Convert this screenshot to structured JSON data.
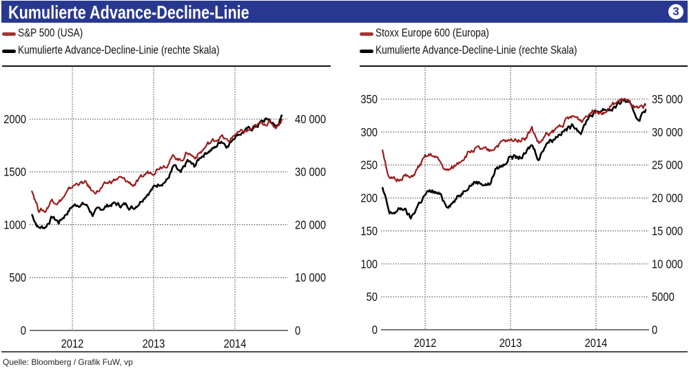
{
  "header": {
    "title": "Kumulierte Advance-Decline-Linie",
    "number": "3",
    "color": "#283891"
  },
  "source": "Quelle: Bloomberg / Grafik FuW, vp",
  "chart_data": [
    {
      "type": "line",
      "legend": [
        "S&P 500 (USA)",
        "Kumulierte Advance-Decline-Linie (rechte Skala)"
      ],
      "x_ticks": [
        "2012",
        "2013",
        "2014"
      ],
      "x_range": [
        2011.5,
        2014.67
      ],
      "y_left": {
        "ticks": [
          "0",
          "500",
          "1000",
          "1500",
          "2000"
        ],
        "tick_values": [
          0,
          500,
          1000,
          1500,
          2000
        ],
        "range": [
          0,
          2500
        ]
      },
      "y_right": {
        "ticks": [
          "0",
          "10 000",
          "20 000",
          "30 000",
          "40 000"
        ],
        "tick_values": [
          0,
          10000,
          20000,
          30000,
          40000
        ],
        "range": [
          0,
          50000
        ]
      },
      "grid": true,
      "series": [
        {
          "name": "S&P 500 (USA)",
          "axis": "left",
          "color": "#9b1b1b",
          "x_start": 2011.5,
          "step_months": 1,
          "values": [
            1340,
            1150,
            1130,
            1240,
            1220,
            1280,
            1360,
            1400,
            1390,
            1310,
            1330,
            1380,
            1420,
            1440,
            1410,
            1380,
            1420,
            1490,
            1510,
            1560,
            1580,
            1650,
            1610,
            1690,
            1640,
            1690,
            1760,
            1800,
            1840,
            1780,
            1860,
            1870,
            1890,
            1920,
            1960,
            1970,
            1930,
            2000
          ]
        },
        {
          "name": "Kumulierte Advance-Decline-Linie",
          "axis": "right",
          "color": "#000000",
          "x_start": 2011.5,
          "step_months": 1,
          "values": [
            22000,
            19500,
            19600,
            21500,
            20500,
            22000,
            23500,
            24000,
            23800,
            22000,
            22800,
            23500,
            24000,
            23700,
            23800,
            23200,
            24500,
            26000,
            27000,
            28000,
            28500,
            31000,
            29500,
            32000,
            31000,
            33000,
            34000,
            34500,
            36000,
            35000,
            37000,
            37500,
            38000,
            38500,
            39500,
            40000,
            38500,
            40500
          ]
        }
      ]
    },
    {
      "type": "line",
      "legend": [
        "Stoxx Europe 600 (Europa)",
        "Kumulierte Advance-Decline-Linie (rechte Skala)"
      ],
      "x_ticks": [
        "2012",
        "2013",
        "2014"
      ],
      "x_range": [
        2011.5,
        2014.65
      ],
      "y_left": {
        "ticks": [
          "0",
          "50",
          "100",
          "150",
          "200",
          "250",
          "300",
          "350"
        ],
        "tick_values": [
          0,
          50,
          100,
          150,
          200,
          250,
          300,
          350
        ],
        "range": [
          0,
          350
        ]
      },
      "y_right": {
        "ticks": [
          "0",
          "5000",
          "10 000",
          "15 000",
          "20 000",
          "25 000",
          "30 000",
          "35 000"
        ],
        "tick_values": [
          0,
          5000,
          10000,
          15000,
          20000,
          25000,
          30000,
          35000
        ],
        "range": [
          0,
          35000
        ]
      },
      "grid": true,
      "series": [
        {
          "name": "Stoxx Europe 600 (Europa)",
          "axis": "left",
          "color": "#9b1b1b",
          "x_start": 2011.5,
          "step_months": 1,
          "values": [
            275,
            228,
            225,
            235,
            228,
            245,
            260,
            265,
            255,
            240,
            245,
            258,
            268,
            275,
            272,
            270,
            280,
            285,
            285,
            290,
            292,
            305,
            282,
            295,
            300,
            310,
            320,
            322,
            318,
            330,
            335,
            332,
            338,
            345,
            350,
            340,
            332,
            340
          ]
        },
        {
          "name": "Kumulierte Advance-Decline-Linie",
          "axis": "right",
          "color": "#000000",
          "x_start": 2011.5,
          "step_months": 1,
          "values": [
            21500,
            17500,
            18000,
            18500,
            16800,
            19000,
            20500,
            21000,
            20500,
            19000,
            19500,
            20500,
            22000,
            22500,
            22300,
            22000,
            24500,
            25000,
            26500,
            26000,
            26500,
            28000,
            26000,
            28500,
            29000,
            30000,
            30500,
            31000,
            30000,
            32500,
            33000,
            33500,
            33500,
            34000,
            35000,
            33500,
            32000,
            33500
          ]
        }
      ]
    }
  ]
}
